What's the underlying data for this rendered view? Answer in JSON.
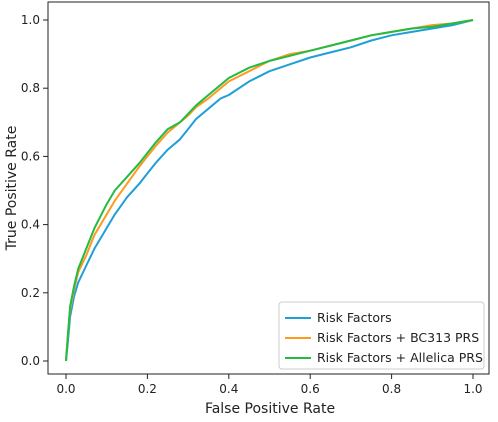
{
  "chart_data": {
    "type": "line",
    "title": "",
    "xlabel": "False Positive Rate",
    "ylabel": "True Positive Rate",
    "xlim": [
      0.0,
      1.0
    ],
    "ylim": [
      0.0,
      1.0
    ],
    "xticks": [
      "0.0",
      "0.2",
      "0.4",
      "0.6",
      "0.8",
      "1.0"
    ],
    "yticks": [
      "0.0",
      "0.2",
      "0.4",
      "0.6",
      "0.8",
      "1.0"
    ],
    "grid": false,
    "legend_position": "lower-right",
    "series": [
      {
        "name": "Risk Factors",
        "color": "#1f9fd6",
        "x": [
          0.0,
          0.005,
          0.01,
          0.02,
          0.03,
          0.05,
          0.07,
          0.1,
          0.12,
          0.15,
          0.18,
          0.2,
          0.22,
          0.25,
          0.28,
          0.3,
          0.32,
          0.35,
          0.38,
          0.4,
          0.45,
          0.5,
          0.55,
          0.6,
          0.65,
          0.7,
          0.75,
          0.8,
          0.85,
          0.9,
          0.95,
          1.0
        ],
        "y": [
          0.0,
          0.06,
          0.13,
          0.19,
          0.23,
          0.28,
          0.33,
          0.39,
          0.43,
          0.48,
          0.52,
          0.55,
          0.58,
          0.62,
          0.65,
          0.68,
          0.71,
          0.74,
          0.77,
          0.78,
          0.82,
          0.85,
          0.87,
          0.89,
          0.905,
          0.92,
          0.94,
          0.955,
          0.965,
          0.975,
          0.985,
          1.0
        ]
      },
      {
        "name": "Risk Factors + BC313 PRS",
        "color": "#ff9a1f",
        "x": [
          0.0,
          0.005,
          0.01,
          0.02,
          0.03,
          0.05,
          0.07,
          0.1,
          0.12,
          0.15,
          0.18,
          0.2,
          0.22,
          0.25,
          0.28,
          0.3,
          0.32,
          0.35,
          0.38,
          0.4,
          0.45,
          0.5,
          0.55,
          0.6,
          0.65,
          0.7,
          0.75,
          0.8,
          0.85,
          0.9,
          0.95,
          1.0
        ],
        "y": [
          0.0,
          0.08,
          0.15,
          0.21,
          0.26,
          0.31,
          0.37,
          0.43,
          0.47,
          0.52,
          0.57,
          0.6,
          0.63,
          0.67,
          0.7,
          0.72,
          0.745,
          0.77,
          0.8,
          0.82,
          0.85,
          0.88,
          0.9,
          0.91,
          0.925,
          0.94,
          0.955,
          0.965,
          0.975,
          0.985,
          0.99,
          1.0
        ]
      },
      {
        "name": "Risk Factors + Allelica PRS",
        "color": "#22bb44",
        "x": [
          0.0,
          0.005,
          0.01,
          0.02,
          0.03,
          0.05,
          0.07,
          0.1,
          0.12,
          0.15,
          0.18,
          0.2,
          0.22,
          0.25,
          0.28,
          0.3,
          0.32,
          0.35,
          0.38,
          0.4,
          0.45,
          0.5,
          0.55,
          0.6,
          0.65,
          0.7,
          0.75,
          0.8,
          0.85,
          0.9,
          0.95,
          1.0
        ],
        "y": [
          0.0,
          0.08,
          0.16,
          0.22,
          0.27,
          0.33,
          0.39,
          0.46,
          0.5,
          0.54,
          0.58,
          0.61,
          0.64,
          0.68,
          0.7,
          0.725,
          0.75,
          0.78,
          0.81,
          0.83,
          0.86,
          0.88,
          0.895,
          0.91,
          0.925,
          0.94,
          0.955,
          0.965,
          0.975,
          0.98,
          0.99,
          1.0
        ]
      }
    ]
  }
}
